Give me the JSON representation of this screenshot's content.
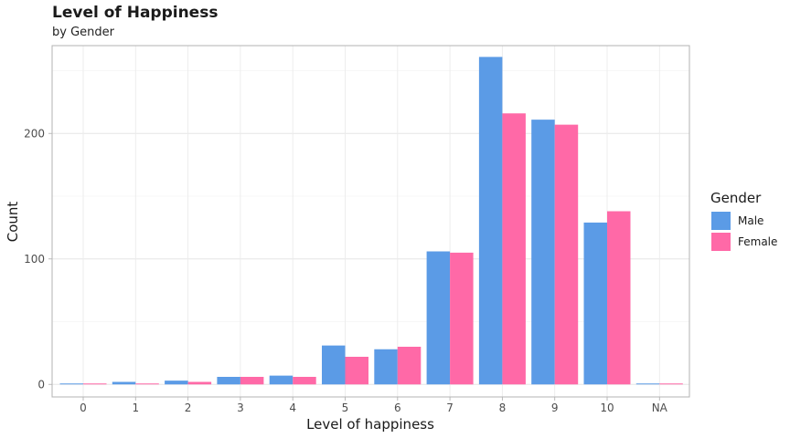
{
  "chart_data": {
    "type": "bar",
    "title": "Level of Happiness",
    "subtitle": "by Gender",
    "xlabel": "Level of happiness",
    "ylabel": "Count",
    "categories": [
      "0",
      "1",
      "2",
      "3",
      "4",
      "5",
      "6",
      "7",
      "8",
      "9",
      "10",
      "NA"
    ],
    "series": [
      {
        "name": "Male",
        "color": "#5B9BE6",
        "values": [
          0,
          2,
          3,
          6,
          7,
          31,
          28,
          106,
          261,
          211,
          129,
          0
        ]
      },
      {
        "name": "Female",
        "color": "#FF69A7",
        "values": [
          0,
          0,
          2,
          6,
          6,
          22,
          30,
          105,
          216,
          207,
          138,
          0
        ]
      }
    ],
    "yticks": [
      0,
      100,
      200
    ],
    "ylim": [
      -10,
      270
    ],
    "legend_title": "Gender",
    "legend_position": "right",
    "grid": true
  }
}
